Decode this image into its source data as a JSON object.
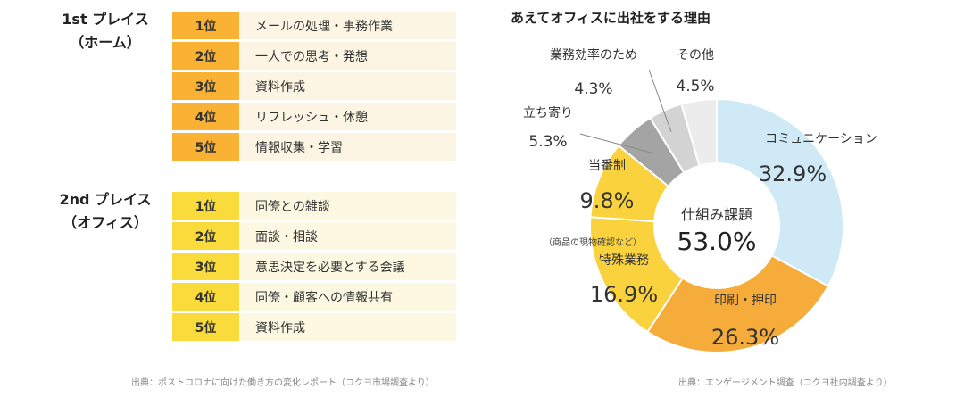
{
  "left": {
    "home": {
      "heading_line1": "1st プレイス",
      "heading_line2": "（ホーム）",
      "rows": [
        {
          "rank": "1位",
          "item": "メールの処理・事務作業"
        },
        {
          "rank": "2位",
          "item": "一人での思考・発想"
        },
        {
          "rank": "3位",
          "item": "資料作成"
        },
        {
          "rank": "4位",
          "item": "リフレッシュ・休憩"
        },
        {
          "rank": "5位",
          "item": "情報収集・学習"
        }
      ]
    },
    "office": {
      "heading_line1": "2nd プレイス",
      "heading_line2": "（オフィス）",
      "rows": [
        {
          "rank": "1位",
          "item": "同僚との雑談"
        },
        {
          "rank": "2位",
          "item": "面談・相談"
        },
        {
          "rank": "3位",
          "item": "意思決定を必要とする会議"
        },
        {
          "rank": "4位",
          "item": "同僚・顧客への情報共有"
        },
        {
          "rank": "5位",
          "item": "資料作成"
        }
      ]
    },
    "source": "出典：ポストコロナに向けた働き方の変化レポート（コクヨ市場調査より）"
  },
  "chart_data": {
    "type": "pie",
    "style": "donut",
    "title": "あえてオフィスに出社をする理由",
    "center_label": "仕組み課題",
    "center_value": "53.0%",
    "slices": [
      {
        "label": "コミュニケーション",
        "value": 32.9,
        "display": "32.9%",
        "color": "#cfeaf6"
      },
      {
        "label": "印刷・押印",
        "value": 26.3,
        "display": "26.3%",
        "color": "#f6ac3b"
      },
      {
        "label": "特殊業務",
        "note": "（商品の現物確認など）",
        "value": 16.9,
        "display": "16.9%",
        "color": "#f9d23e"
      },
      {
        "label": "当番制",
        "value": 9.8,
        "display": "9.8%",
        "color": "#f9d23e"
      },
      {
        "label": "立ち寄り",
        "value": 5.3,
        "display": "5.3%",
        "color": "#a4a4a4"
      },
      {
        "label": "業務効率のため",
        "value": 4.3,
        "display": "4.3%",
        "color": "#d3d3d3"
      },
      {
        "label": "その他",
        "value": 4.5,
        "display": "4.5%",
        "color": "#ececec"
      }
    ],
    "source": "出典：エンゲージメント調査（コクヨ社内調査より）"
  }
}
